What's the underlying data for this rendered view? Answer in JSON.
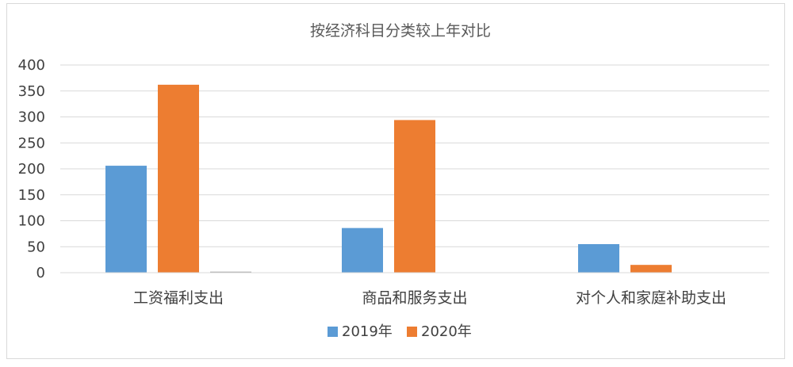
{
  "chart_data": {
    "type": "bar",
    "title": "按经济科目分类较上年对比",
    "categories": [
      "工资福利支出",
      "商品和服务支出",
      "对个人和家庭补助支出"
    ],
    "series": [
      {
        "name": "2019年",
        "values": [
          206,
          86,
          55
        ],
        "color": "#5b9bd5"
      },
      {
        "name": "2020年",
        "values": [
          362,
          294,
          15
        ],
        "color": "#ed7d31"
      },
      {
        "name": "",
        "values": [
          2,
          0,
          0
        ],
        "color": "#a5a5a5"
      }
    ],
    "ylim": [
      0,
      400
    ],
    "yticks": [
      0,
      50,
      100,
      150,
      200,
      250,
      300,
      350,
      400
    ],
    "grid": true,
    "legend_position": "bottom"
  }
}
